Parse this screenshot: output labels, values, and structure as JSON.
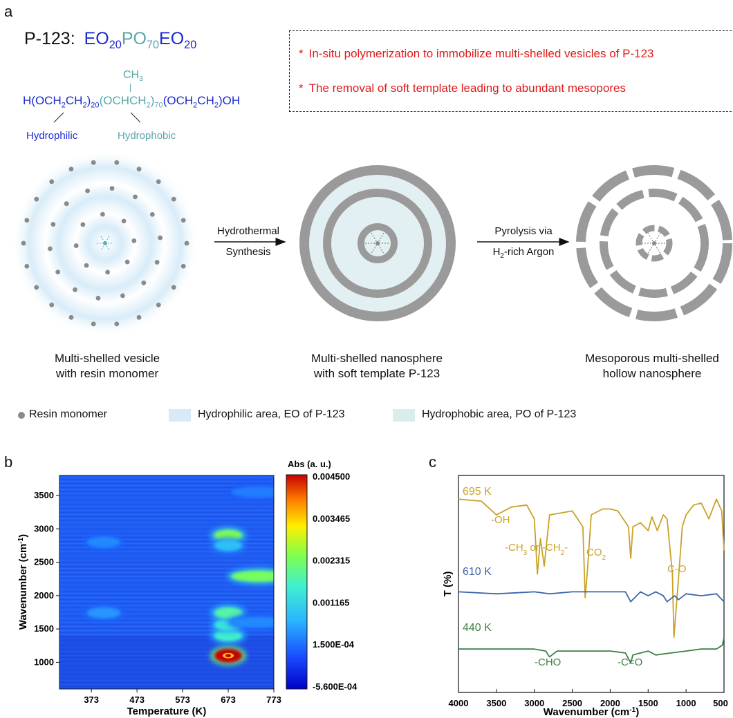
{
  "panel_a": {
    "letter": "a",
    "formula_label": "P-123:",
    "formula_eo1": "EO",
    "formula_sub1": "20",
    "formula_po": "PO",
    "formula_sub2": "70",
    "formula_eo2": "EO",
    "formula_sub3": "20",
    "ch3": "CH",
    "ch3_sub": "3",
    "struct_part1": "H(OCH",
    "struct_part1_sub": "2",
    "struct_part2": "CH",
    "struct_part2_sub": "2",
    "struct_part3": ")",
    "struct_part3_sub": "20",
    "struct_po_a": "(OCHCH",
    "struct_po_sub": "2",
    "struct_po_b": ")",
    "struct_po_sub2": "70",
    "struct_part4": "(OCH",
    "struct_part4_sub": "2",
    "struct_part5": "CH",
    "struct_part5_sub": "2",
    "struct_part6": ")OH",
    "hydrophilic": "Hydrophilic",
    "hydrophobic": "Hydrophobic",
    "bullet1": "In-situ polymerization to immobilize multi-shelled vesicles of P-123",
    "bullet2": "The removal of soft template leading to abundant mesopores",
    "arrow1_top": "Hydrothermal",
    "arrow1_bottom": "Synthesis",
    "arrow2_top": "Pyrolysis via",
    "arrow2_bottom_pre": "H",
    "arrow2_bottom_sub": "2",
    "arrow2_bottom_post": "-rich Argon",
    "caption1_line1": "Multi-shelled vesicle",
    "caption1_line2": "with resin monomer",
    "caption2_line1": "Multi-shelled nanosphere",
    "caption2_line2": "with soft template P-123",
    "caption3_line1": "Mesoporous multi-shelled",
    "caption3_line2": "hollow nanosphere",
    "legend": [
      {
        "label": "Resin monomer",
        "color": "#8a8a8a"
      },
      {
        "label": "Hydrophilic area, EO of P-123",
        "color": "#d6eaf8"
      },
      {
        "label": "Hydrophobic area, PO of P-123",
        "color": "#d9ecee"
      }
    ],
    "colors": {
      "eo": "#1b2ad0",
      "po": "#59a5ab",
      "bullet": "#e01a1a",
      "shell": "#9a9a9a"
    }
  },
  "panel_b": {
    "letter": "b",
    "colorbar_title": "Abs (a. u.)",
    "colorbar_ticks": [
      "0.004500",
      "0.003465",
      "0.002315",
      "0.001165",
      "1.500E-04",
      "-5.600E-04"
    ],
    "xlabel": "Temperature (K)",
    "ylabel_pre": "Wavenumber (cm",
    "ylabel_sup": "-1",
    "ylabel_post": ")",
    "xticks": [
      "373",
      "473",
      "573",
      "673",
      "773"
    ],
    "yticks": [
      "1000",
      "1500",
      "2000",
      "2500",
      "3000",
      "3500"
    ]
  },
  "panel_c": {
    "letter": "c",
    "ylabel": "T (%)",
    "xlabel_pre": "Wavenumber (cm",
    "xlabel_sup": "-1",
    "xlabel_post": ")",
    "xticks": [
      "4000",
      "3500",
      "3000",
      "2500",
      "2000",
      "1500",
      "1000",
      "500"
    ],
    "series_labels": [
      {
        "label": "695 K",
        "color": "#c9a227"
      },
      {
        "label": "610 K",
        "color": "#3e64a8"
      },
      {
        "label": "440 K",
        "color": "#3f7f43"
      }
    ],
    "annotations": {
      "oh": "-OH",
      "ch_pre": "-CH",
      "ch_sub1": "3",
      "ch_mid": " or -CH",
      "ch_sub2": "2",
      "ch_post": "-",
      "co2_pre": "CO",
      "co2_sub": "2",
      "co": "C-O",
      "cho": "-CHO",
      "ceo": "-C=O"
    }
  },
  "chart_data": [
    {
      "type": "heatmap",
      "title": "",
      "xlabel": "Temperature (K)",
      "ylabel": "Wavenumber (cm-1)",
      "xlim": [
        303,
        773
      ],
      "ylim": [
        600,
        3800
      ],
      "color_range": [
        -0.00056,
        0.0045
      ],
      "colorbar_label": "Abs (a. u.)",
      "hotspots": [
        {
          "x": 673,
          "y": 1100,
          "value": 0.0045
        },
        {
          "x": 673,
          "y": 1400,
          "value": 0.0019
        },
        {
          "x": 673,
          "y": 1560,
          "value": 0.0017
        },
        {
          "x": 673,
          "y": 1740,
          "value": 0.0021
        },
        {
          "x": 673,
          "y": 2900,
          "value": 0.0026
        },
        {
          "x": 673,
          "y": 2750,
          "value": 0.0012
        },
        {
          "x": 740,
          "y": 2290,
          "value": 0.0025
        },
        {
          "x": 740,
          "y": 1600,
          "value": 0.0007
        },
        {
          "x": 740,
          "y": 3550,
          "value": 0.0006
        },
        {
          "x": 400,
          "y": 2800,
          "value": 0.0007
        },
        {
          "x": 400,
          "y": 1740,
          "value": 0.0008
        }
      ]
    },
    {
      "type": "line",
      "title": "",
      "xlabel": "Wavenumber (cm-1)",
      "ylabel": "T (%)",
      "xlim": [
        4000,
        500
      ],
      "series": [
        {
          "name": "695 K",
          "x": [
            4000,
            3700,
            3500,
            3300,
            3100,
            3000,
            2960,
            2920,
            2870,
            2800,
            2500,
            2360,
            2330,
            2300,
            2250,
            2100,
            2000,
            1900,
            1760,
            1730,
            1700,
            1600,
            1500,
            1450,
            1380,
            1300,
            1250,
            1180,
            1160,
            1100,
            1050,
            1000,
            900,
            800,
            700,
            600,
            530,
            500
          ],
          "y": [
            98,
            97,
            90,
            94,
            95,
            88,
            60,
            78,
            64,
            90,
            92,
            84,
            48,
            62,
            90,
            93,
            93,
            92,
            84,
            68,
            84,
            86,
            82,
            89,
            82,
            90,
            88,
            60,
            28,
            58,
            84,
            90,
            95,
            96,
            88,
            98,
            92,
            72
          ]
        },
        {
          "name": "610 K",
          "x": [
            4000,
            3500,
            3000,
            2800,
            2500,
            2000,
            1800,
            1730,
            1600,
            1500,
            1400,
            1300,
            1250,
            1150,
            1100,
            1000,
            800,
            600,
            500
          ],
          "y": [
            51,
            50,
            51,
            50,
            51,
            51,
            51,
            46,
            51,
            49,
            51,
            49,
            46,
            49,
            47,
            50,
            49,
            50,
            46
          ]
        },
        {
          "name": "440 K",
          "x": [
            4000,
            3500,
            3000,
            2850,
            2800,
            2700,
            2500,
            2000,
            1800,
            1730,
            1700,
            1600,
            1500,
            1400,
            1200,
            1000,
            800,
            600,
            520,
            500
          ],
          "y": [
            22,
            22,
            22,
            21,
            18,
            21,
            21,
            21,
            20,
            15,
            19,
            20,
            21,
            19,
            20,
            21,
            22,
            22,
            24,
            28
          ]
        }
      ]
    }
  ]
}
